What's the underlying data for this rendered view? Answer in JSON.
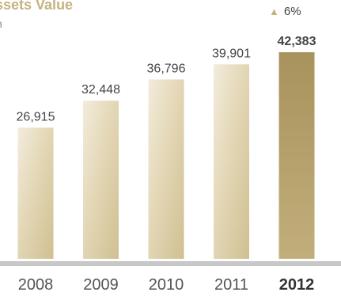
{
  "header": {
    "title": "ssets Value",
    "subtitle": "n"
  },
  "change_badge": {
    "arrow": "▲",
    "text": "6%"
  },
  "colors": {
    "bar_light": "#f3ecdc",
    "bar_mid": "#e3d7b6",
    "bar_dark": "#d0bf91",
    "bar_highlight_top": "#a8935d",
    "bar_highlight_bottom": "#c2ae7a",
    "axis_line": "#c8c8c8",
    "title": "#c6b27e",
    "text": "#444444"
  },
  "chart_data": {
    "type": "bar",
    "title": "ssets Value",
    "categories": [
      "2008",
      "2009",
      "2010",
      "2011",
      "2012"
    ],
    "values": [
      26915,
      32448,
      36796,
      39901,
      42383
    ],
    "value_labels": [
      "26,915",
      "32,448",
      "36,796",
      "39,901",
      "42,383"
    ],
    "highlight_index": 4,
    "xlabel": "",
    "ylabel": "",
    "grid": false
  }
}
